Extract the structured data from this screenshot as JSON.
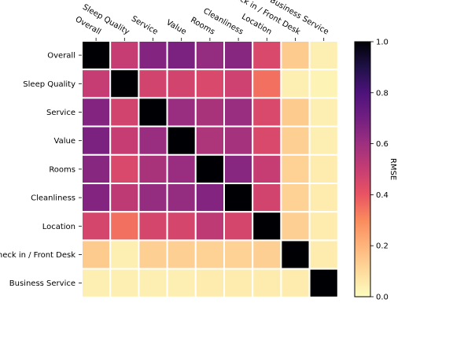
{
  "chart_data": {
    "type": "heatmap",
    "title": "",
    "row_labels": [
      "Overall",
      "Sleep Quality",
      "Service",
      "Value",
      "Rooms",
      "Cleanliness",
      "Location",
      "Check in / Front Desk",
      "Business Service"
    ],
    "col_labels": [
      "Overall",
      "Sleep Quality",
      "Service",
      "Value",
      "Rooms",
      "Cleanliness",
      "Location",
      "Check in / Front Desk",
      "Business Service"
    ],
    "values": [
      [
        1.0,
        0.5,
        0.66,
        0.68,
        0.62,
        0.65,
        0.45,
        0.14,
        0.04
      ],
      [
        0.5,
        1.0,
        0.47,
        0.47,
        0.45,
        0.48,
        0.35,
        0.04,
        0.03
      ],
      [
        0.66,
        0.47,
        1.0,
        0.61,
        0.57,
        0.61,
        0.45,
        0.14,
        0.04
      ],
      [
        0.68,
        0.5,
        0.61,
        1.0,
        0.56,
        0.58,
        0.45,
        0.13,
        0.04
      ],
      [
        0.65,
        0.45,
        0.57,
        0.61,
        1.0,
        0.65,
        0.5,
        0.12,
        0.05
      ],
      [
        0.66,
        0.52,
        0.62,
        0.62,
        0.66,
        1.0,
        0.47,
        0.12,
        0.05
      ],
      [
        0.46,
        0.35,
        0.46,
        0.46,
        0.52,
        0.46,
        1.0,
        0.13,
        0.05
      ],
      [
        0.14,
        0.04,
        0.13,
        0.13,
        0.12,
        0.12,
        0.13,
        1.0,
        0.05
      ],
      [
        0.04,
        0.04,
        0.04,
        0.04,
        0.05,
        0.05,
        0.05,
        0.05,
        1.0
      ]
    ],
    "colormap": "magma_r",
    "colorbar": {
      "label": "RMSE",
      "min": 0.0,
      "max": 1.0,
      "ticks": [
        "0.0",
        "0.2",
        "0.4",
        "0.6",
        "0.8",
        "1.0"
      ]
    },
    "grid": false
  }
}
